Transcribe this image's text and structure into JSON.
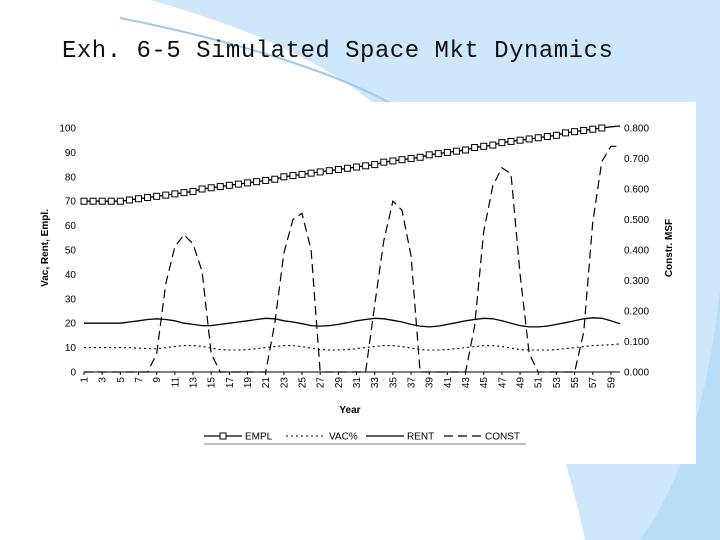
{
  "slide": {
    "title": "Exh. 6-5 Simulated Space Mkt Dynamics",
    "colors": {
      "background": "#ffffff",
      "wave": "#cfe7fb",
      "accent_line": "#9cc9ee"
    }
  },
  "chart_data": {
    "type": "line",
    "title": "",
    "xlabel": "Year",
    "ylabel": "Vac, Rent, Empl.",
    "y2label": "Constr. MSF",
    "ylim": [
      0,
      100
    ],
    "y2lim": [
      0.0,
      0.8
    ],
    "yticks": [
      "0",
      "10",
      "20",
      "30",
      "40",
      "50",
      "60",
      "70",
      "80",
      "90",
      "100"
    ],
    "y2ticks": [
      "0.000",
      "0.100",
      "0.200",
      "0.300",
      "0.400",
      "0.500",
      "0.600",
      "0.700",
      "0.800"
    ],
    "x": [
      1,
      2,
      3,
      4,
      5,
      6,
      7,
      8,
      9,
      10,
      11,
      12,
      13,
      14,
      15,
      16,
      17,
      18,
      19,
      20,
      21,
      22,
      23,
      24,
      25,
      26,
      27,
      28,
      29,
      30,
      31,
      32,
      33,
      34,
      35,
      36,
      37,
      38,
      39,
      40,
      41,
      42,
      43,
      44,
      45,
      46,
      47,
      48,
      49,
      50,
      51,
      52,
      53,
      54,
      55,
      56,
      57,
      58,
      59,
      60
    ],
    "xticks": [
      "1",
      "3",
      "5",
      "7",
      "9",
      "11",
      "13",
      "15",
      "17",
      "19",
      "21",
      "23",
      "25",
      "27",
      "29",
      "31",
      "33",
      "35",
      "37",
      "39",
      "41",
      "43",
      "45",
      "47",
      "49",
      "51",
      "53",
      "55",
      "57",
      "59"
    ],
    "legend_position": "bottom",
    "series": [
      {
        "name": "EMPL",
        "axis": "left",
        "style": "square-markers",
        "values": [
          70,
          70,
          70,
          70,
          70,
          70.5,
          71,
          71.5,
          72,
          72.5,
          73,
          73.5,
          74,
          75,
          75.5,
          76,
          76.5,
          77,
          77.5,
          78,
          78.5,
          79,
          80,
          80.5,
          81,
          81.5,
          82,
          82.5,
          83,
          83.5,
          84,
          84.5,
          85,
          86,
          86.5,
          87,
          87.5,
          88,
          89,
          89.5,
          90,
          90.5,
          91,
          92,
          92.5,
          93,
          94,
          94.5,
          95,
          95.5,
          96,
          96.5,
          97,
          98,
          98.5,
          99,
          99.5,
          100,
          100.5,
          101
        ]
      },
      {
        "name": "VAC%",
        "axis": "left",
        "style": "dotted",
        "values": [
          10,
          10,
          10,
          10,
          10,
          10,
          9.8,
          9.6,
          9.5,
          10,
          10.5,
          10.8,
          10.8,
          10.5,
          9.8,
          9.2,
          9,
          9,
          9.2,
          9.6,
          10,
          10.4,
          10.8,
          10.8,
          10.4,
          9.8,
          9.2,
          9,
          9,
          9.2,
          9.6,
          10,
          10.5,
          10.8,
          10.8,
          10.4,
          9.8,
          9.2,
          9,
          9,
          9.2,
          9.6,
          10,
          10.4,
          10.8,
          10.8,
          10.4,
          9.8,
          9.2,
          9,
          9,
          9,
          9.2,
          9.6,
          10,
          10.4,
          10.8,
          11,
          11.2,
          11.5
        ]
      },
      {
        "name": "RENT",
        "axis": "left",
        "style": "solid",
        "values": [
          20,
          20,
          20,
          20,
          20,
          20.5,
          21,
          21.5,
          21.8,
          21.5,
          21,
          20,
          19.5,
          19,
          19,
          19.5,
          20,
          20.5,
          21,
          21.5,
          22,
          21.8,
          21,
          20.5,
          19.8,
          19,
          18.8,
          19,
          19.5,
          20.2,
          21,
          21.5,
          22,
          21.8,
          21.2,
          20.5,
          19.5,
          18.8,
          18.5,
          18.8,
          19.5,
          20.2,
          21,
          21.5,
          22,
          21.8,
          21,
          20,
          19,
          18.5,
          18.5,
          18.8,
          19.5,
          20.2,
          21,
          21.8,
          22.2,
          22,
          21,
          19.8
        ]
      },
      {
        "name": "CONST",
        "axis": "right",
        "style": "dashed",
        "values": [
          0,
          0,
          0,
          0,
          0,
          0,
          0,
          0,
          0.06,
          0.29,
          0.41,
          0.45,
          0.42,
          0.33,
          0.06,
          0,
          0,
          0,
          0,
          0,
          0,
          0.16,
          0.39,
          0.5,
          0.52,
          0.4,
          0,
          0,
          0,
          0,
          0,
          0,
          0.22,
          0.43,
          0.56,
          0.53,
          0.38,
          0,
          0,
          0,
          0,
          0,
          0,
          0.15,
          0.46,
          0.61,
          0.67,
          0.65,
          0.32,
          0.06,
          0,
          0,
          0,
          0,
          0,
          0.13,
          0.49,
          0.69,
          0.74,
          0.74
        ]
      }
    ]
  }
}
